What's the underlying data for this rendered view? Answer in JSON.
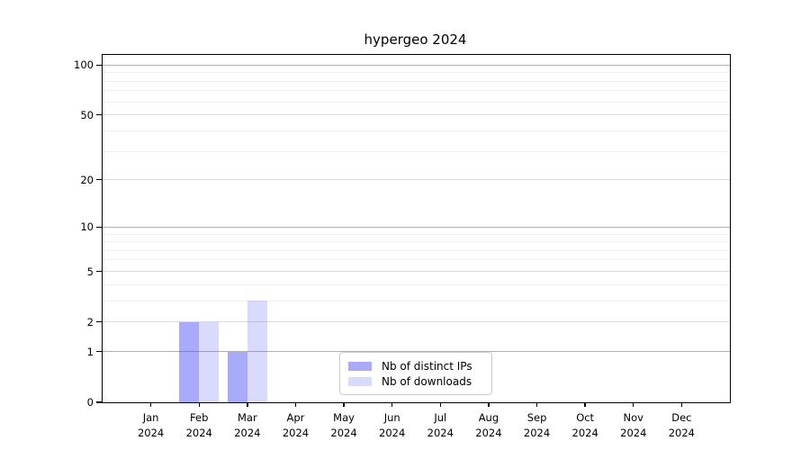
{
  "chart_data": {
    "type": "bar",
    "title": "hypergeo 2024",
    "categories": [
      "Jan",
      "Feb",
      "Mar",
      "Apr",
      "May",
      "Jun",
      "Jul",
      "Aug",
      "Sep",
      "Oct",
      "Nov",
      "Dec"
    ],
    "xtick_year_line": "2024",
    "series": [
      {
        "name": "Nb of distinct IPs",
        "color": "rgba(85,85,248,0.5)",
        "values": [
          0,
          2,
          1,
          0,
          0,
          0,
          0,
          0,
          0,
          0,
          0,
          0
        ]
      },
      {
        "name": "Nb of downloads",
        "color": "rgba(85,85,248,0.22)",
        "values": [
          0,
          2,
          3,
          0,
          0,
          0,
          0,
          0,
          0,
          0,
          0,
          0
        ]
      }
    ],
    "yscale": "log1p",
    "ylim": [
      0,
      115
    ],
    "yticks": [
      0,
      1,
      2,
      5,
      10,
      20,
      50,
      100
    ],
    "yticks_minor": [
      3,
      4,
      6,
      7,
      8,
      9,
      30,
      40,
      60,
      70,
      80,
      90
    ],
    "grid": {
      "on": true,
      "power_of_ten_lines": [
        1,
        10,
        100
      ],
      "power_of_ten_color": "#b0b0b0",
      "labeled_line_color": "#dadada",
      "minor_line_color": "#f0f0f0"
    },
    "legend": {
      "position": "lower center",
      "entries": [
        "Nb of distinct IPs",
        "Nb of downloads"
      ]
    }
  }
}
